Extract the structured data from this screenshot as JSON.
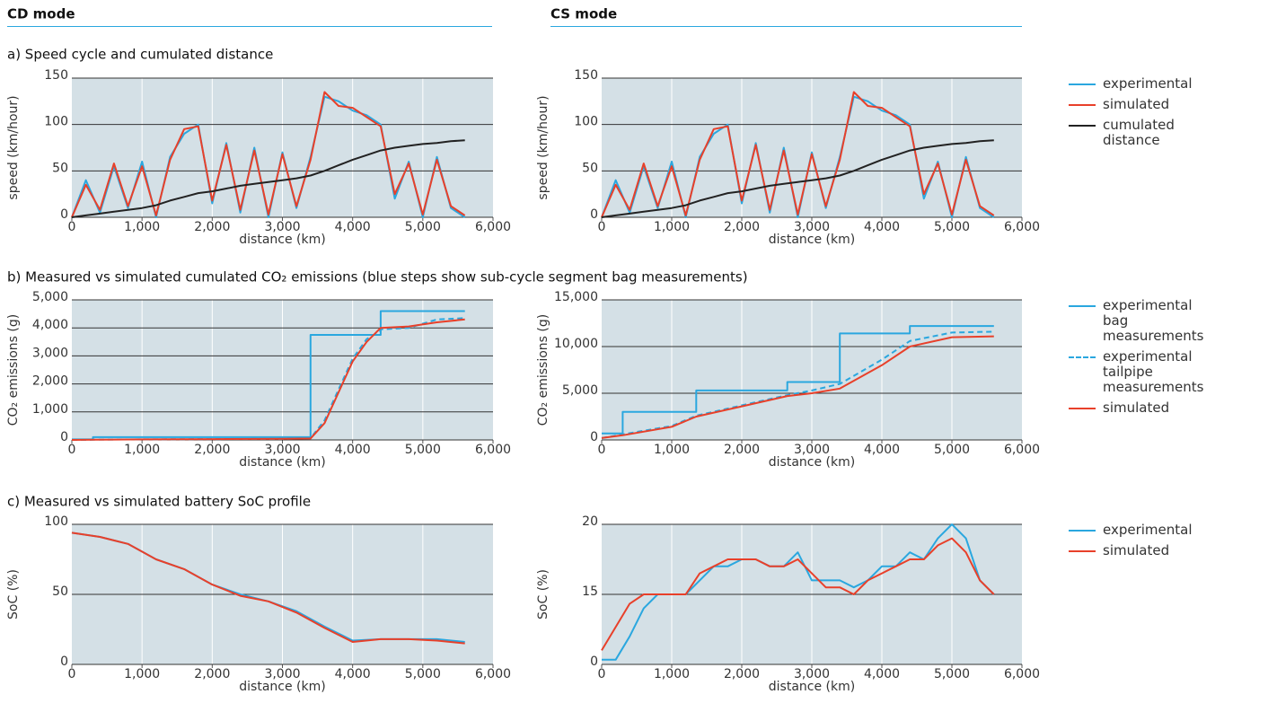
{
  "columns": [
    "CD mode",
    "CS mode"
  ],
  "sections": [
    "a) Speed cycle and cumulated distance",
    "b) Measured vs simulated cumulated CO₂ emissions (blue steps show sub-cycle segment bag measurements)",
    "c) Measured vs simulated battery SoC profile"
  ],
  "chart_data": [
    {
      "type": "line",
      "x_label": "distance (km)",
      "y_label": "speed (km/hour)",
      "grid": true,
      "x": [
        0,
        200,
        400,
        600,
        800,
        1000,
        1200,
        1400,
        1600,
        1800,
        2000,
        2200,
        2400,
        2600,
        2800,
        3000,
        3200,
        3400,
        3600,
        3800,
        4000,
        4200,
        4400,
        4600,
        4800,
        5000,
        5200,
        5400,
        5600
      ],
      "xlim": [
        0,
        6000
      ],
      "xticks": [
        0,
        {
          "value": 1000,
          "label": "1,000"
        },
        {
          "value": 2000,
          "label": "2,000"
        },
        {
          "value": 3000,
          "label": "3,000"
        },
        {
          "value": 4000,
          "label": "4,000"
        },
        {
          "value": 5000,
          "label": "5,000"
        },
        {
          "value": 6000,
          "label": "6,000"
        }
      ],
      "ylim": [
        0,
        150
      ],
      "yticks": [
        0,
        50,
        100,
        150
      ],
      "series": [
        {
          "name": "experimental",
          "color": "#2aa7df",
          "values": [
            0,
            40,
            5,
            55,
            10,
            60,
            0,
            65,
            90,
            100,
            15,
            80,
            5,
            75,
            0,
            70,
            10,
            65,
            130,
            125,
            115,
            110,
            100,
            20,
            60,
            0,
            65,
            10,
            0
          ]
        },
        {
          "name": "simulated",
          "color": "#e8402a",
          "values": [
            0,
            35,
            8,
            58,
            12,
            55,
            2,
            62,
            95,
            98,
            18,
            78,
            8,
            72,
            3,
            68,
            12,
            62,
            135,
            120,
            118,
            108,
            98,
            25,
            58,
            3,
            62,
            12,
            2
          ]
        },
        {
          "name": "cumulated distance",
          "color": "#222222",
          "values": [
            0,
            2,
            4,
            6,
            8,
            10,
            13,
            18,
            22,
            26,
            28,
            31,
            34,
            36,
            38,
            40,
            42,
            45,
            50,
            56,
            62,
            67,
            72,
            75,
            77,
            79,
            80,
            82,
            83
          ]
        }
      ]
    },
    {
      "type": "line",
      "x_label": "distance (km)",
      "y_label": "speed (km/hour)",
      "grid": true,
      "legend": "outside-right",
      "x": [
        0,
        200,
        400,
        600,
        800,
        1000,
        1200,
        1400,
        1600,
        1800,
        2000,
        2200,
        2400,
        2600,
        2800,
        3000,
        3200,
        3400,
        3600,
        3800,
        4000,
        4200,
        4400,
        4600,
        4800,
        5000,
        5200,
        5400,
        5600
      ],
      "xlim": [
        0,
        6000
      ],
      "xticks": [
        0,
        {
          "value": 1000,
          "label": "1,000"
        },
        {
          "value": 2000,
          "label": "2,000"
        },
        {
          "value": 3000,
          "label": "3,000"
        },
        {
          "value": 4000,
          "label": "4,000"
        },
        {
          "value": 5000,
          "label": "5,000"
        },
        {
          "value": 6000,
          "label": "6,000"
        }
      ],
      "ylim": [
        0,
        150
      ],
      "yticks": [
        0,
        50,
        100,
        150
      ],
      "series": [
        {
          "name": "experimental",
          "color": "#2aa7df",
          "values": [
            0,
            40,
            5,
            55,
            10,
            60,
            0,
            65,
            90,
            100,
            15,
            80,
            5,
            75,
            0,
            70,
            10,
            65,
            130,
            125,
            115,
            110,
            100,
            20,
            60,
            0,
            65,
            10,
            0
          ]
        },
        {
          "name": "simulated",
          "color": "#e8402a",
          "values": [
            0,
            35,
            8,
            58,
            12,
            55,
            2,
            62,
            95,
            98,
            18,
            78,
            8,
            72,
            3,
            68,
            12,
            62,
            135,
            120,
            118,
            108,
            98,
            25,
            58,
            3,
            62,
            12,
            2
          ]
        },
        {
          "name": "cumulated distance",
          "color": "#222222",
          "values": [
            0,
            2,
            4,
            6,
            8,
            10,
            13,
            18,
            22,
            26,
            28,
            31,
            34,
            36,
            38,
            40,
            42,
            45,
            50,
            56,
            62,
            67,
            72,
            75,
            77,
            79,
            80,
            82,
            83
          ]
        }
      ]
    },
    {
      "type": "line",
      "x_label": "distance (km)",
      "y_label": "CO₂ emissions (g)",
      "grid": true,
      "x": [
        0,
        300,
        300,
        1000,
        2000,
        3000,
        3400,
        3400,
        3600,
        3800,
        4000,
        4200,
        4400,
        4400,
        4800,
        5200,
        5600
      ],
      "xlim": [
        0,
        6000
      ],
      "xticks": [
        0,
        {
          "value": 1000,
          "label": "1,000"
        },
        {
          "value": 2000,
          "label": "2,000"
        },
        {
          "value": 3000,
          "label": "3,000"
        },
        {
          "value": 4000,
          "label": "4,000"
        },
        {
          "value": 5000,
          "label": "5,000"
        },
        {
          "value": 6000,
          "label": "6,000"
        }
      ],
      "ylim": [
        0,
        5000
      ],
      "yticks": [
        0,
        {
          "value": 1000,
          "label": "1,000"
        },
        {
          "value": 2000,
          "label": "2,000"
        },
        {
          "value": 3000,
          "label": "3,000"
        },
        {
          "value": 4000,
          "label": "4,000"
        },
        {
          "value": 5000,
          "label": "5,000"
        }
      ],
      "series": [
        {
          "name": "experimental bag measurements",
          "color": "#2aa7df",
          "values": [
            20,
            20,
            100,
            100,
            100,
            100,
            100,
            3750,
            3750,
            3750,
            3750,
            3750,
            3750,
            4600,
            4600,
            4600,
            4600
          ]
        },
        {
          "name": "experimental tailpipe measurements",
          "color": "#2aa7df",
          "style": "dashed",
          "values": [
            0,
            5,
            10,
            20,
            30,
            40,
            60,
            60,
            700,
            1800,
            2900,
            3600,
            3900,
            3950,
            4000,
            4300,
            4350
          ]
        },
        {
          "name": "simulated",
          "color": "#e8402a",
          "values": [
            0,
            5,
            10,
            20,
            30,
            40,
            50,
            50,
            600,
            1700,
            2800,
            3500,
            4000,
            4000,
            4050,
            4200,
            4300
          ]
        }
      ]
    },
    {
      "type": "line",
      "x_label": "distance (km)",
      "y_label": "CO₂ emissions (g)",
      "grid": true,
      "legend": "outside-right",
      "x": [
        0,
        300,
        300,
        1000,
        1350,
        1350,
        2000,
        2650,
        2650,
        3000,
        3400,
        3400,
        4000,
        4400,
        4400,
        5000,
        5600
      ],
      "xlim": [
        0,
        6000
      ],
      "xticks": [
        0,
        {
          "value": 1000,
          "label": "1,000"
        },
        {
          "value": 2000,
          "label": "2,000"
        },
        {
          "value": 3000,
          "label": "3,000"
        },
        {
          "value": 4000,
          "label": "4,000"
        },
        {
          "value": 5000,
          "label": "5,000"
        },
        {
          "value": 6000,
          "label": "6,000"
        }
      ],
      "ylim": [
        0,
        15000
      ],
      "yticks": [
        0,
        {
          "value": 5000,
          "label": "5,000"
        },
        {
          "value": 10000,
          "label": "10,000"
        },
        {
          "value": 15000,
          "label": "15,000"
        }
      ],
      "series": [
        {
          "name": "experimental bag measurements",
          "color": "#2aa7df",
          "values": [
            700,
            700,
            3000,
            3000,
            3000,
            5300,
            5300,
            5300,
            6200,
            6200,
            6200,
            11400,
            11400,
            11400,
            12200,
            12200,
            12200
          ]
        },
        {
          "name": "experimental tailpipe measurements",
          "color": "#2aa7df",
          "style": "dashed",
          "values": [
            200,
            600,
            600,
            1500,
            2600,
            2600,
            3700,
            4800,
            4800,
            5300,
            6000,
            6000,
            8600,
            10600,
            10600,
            11500,
            11600
          ]
        },
        {
          "name": "simulated",
          "color": "#e8402a",
          "values": [
            200,
            500,
            500,
            1400,
            2500,
            2500,
            3600,
            4700,
            4700,
            5000,
            5500,
            5500,
            8000,
            10000,
            10000,
            11000,
            11100
          ]
        }
      ]
    },
    {
      "type": "line",
      "x_label": "distance (km)",
      "y_label": "SoC (%)",
      "grid": true,
      "x": [
        0,
        400,
        800,
        1200,
        1600,
        2000,
        2400,
        2800,
        3200,
        3600,
        4000,
        4400,
        4800,
        5200,
        5600
      ],
      "xlim": [
        0,
        6000
      ],
      "xticks": [
        0,
        {
          "value": 1000,
          "label": "1,000"
        },
        {
          "value": 2000,
          "label": "2,000"
        },
        {
          "value": 3000,
          "label": "3,000"
        },
        {
          "value": 4000,
          "label": "4,000"
        },
        {
          "value": 5000,
          "label": "5,000"
        },
        {
          "value": 6000,
          "label": "6,000"
        }
      ],
      "ylim": [
        0,
        100
      ],
      "yticks": [
        0,
        50,
        100
      ],
      "series": [
        {
          "name": "experimental",
          "color": "#2aa7df",
          "values": [
            94,
            91,
            86,
            75,
            68,
            57,
            50,
            45,
            38,
            27,
            17,
            18,
            18,
            18,
            16
          ]
        },
        {
          "name": "simulated",
          "color": "#e8402a",
          "values": [
            94,
            91,
            86,
            75,
            68,
            57,
            49,
            45,
            37,
            26,
            16,
            18,
            18,
            17,
            15
          ]
        }
      ]
    },
    {
      "type": "line",
      "x_label": "distance (km)",
      "y_label": "SoC (%)",
      "grid": true,
      "legend": "outside-right",
      "yscale": "tick-spaced",
      "x": [
        0,
        200,
        400,
        600,
        800,
        1000,
        1200,
        1400,
        1600,
        1800,
        2000,
        2200,
        2400,
        2600,
        2800,
        3000,
        3200,
        3400,
        3600,
        3800,
        4000,
        4200,
        4400,
        4600,
        4800,
        5000,
        5200,
        5400,
        5600
      ],
      "xlim": [
        0,
        6000
      ],
      "xticks": [
        0,
        {
          "value": 1000,
          "label": "1,000"
        },
        {
          "value": 2000,
          "label": "2,000"
        },
        {
          "value": 3000,
          "label": "3,000"
        },
        {
          "value": 4000,
          "label": "4,000"
        },
        {
          "value": 5000,
          "label": "5,000"
        },
        {
          "value": 6000,
          "label": "6,000"
        }
      ],
      "ylim": [
        0,
        20
      ],
      "yticks": [
        0,
        15,
        20
      ],
      "series": [
        {
          "name": "experimental",
          "color": "#2aa7df",
          "values": [
            1,
            1,
            6,
            12,
            15,
            15,
            15,
            16,
            17,
            17,
            17.5,
            17.5,
            17,
            17,
            18,
            16,
            16,
            16,
            15.5,
            16,
            17,
            17,
            18,
            17.5,
            19,
            20,
            19,
            16,
            15
          ]
        },
        {
          "name": "simulated",
          "color": "#e8402a",
          "values": [
            3,
            8,
            13,
            15,
            15,
            15,
            15,
            16.5,
            17,
            17.5,
            17.5,
            17.5,
            17,
            17,
            17.5,
            16.5,
            15.5,
            15.5,
            15,
            16,
            16.5,
            17,
            17.5,
            17.5,
            18.5,
            19,
            18,
            16,
            15
          ]
        }
      ]
    }
  ]
}
